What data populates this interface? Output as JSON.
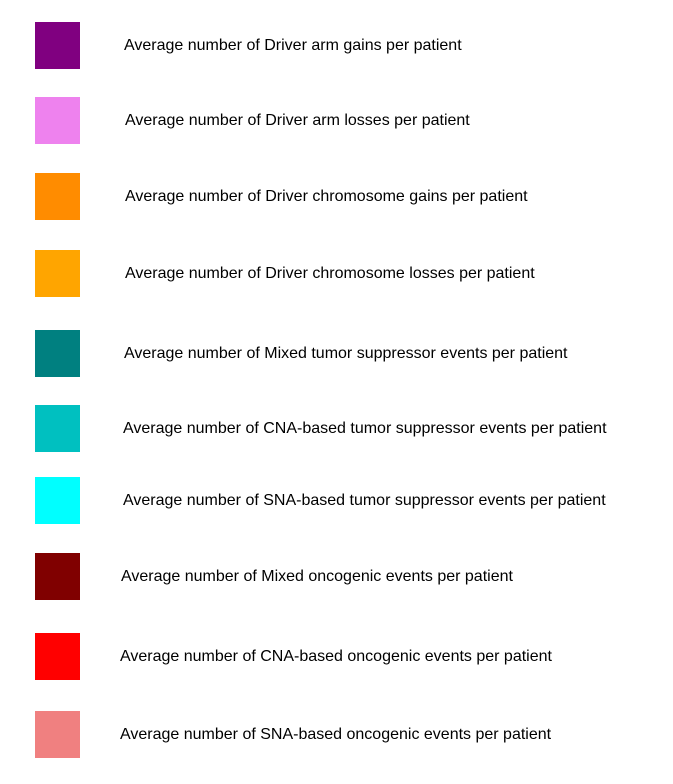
{
  "chart_data": {
    "type": "legend",
    "title": "",
    "entries": [
      {
        "label": "Average number of Driver arm gains per patient",
        "color": "#800080"
      },
      {
        "label": "Average number of Driver arm losses per patient",
        "color": "#EE82EE"
      },
      {
        "label": "Average number of Driver chromosome gains per patient",
        "color": "#FF8C00"
      },
      {
        "label": "Average number of Driver chromosome losses per patient",
        "color": "#FFA500"
      },
      {
        "label": "Average number of Mixed tumor suppressor events per patient",
        "color": "#008080"
      },
      {
        "label": "Average number of CNA-based tumor suppressor events per patient",
        "color": "#00C0C0"
      },
      {
        "label": "Average number of SNA-based tumor suppressor events per patient",
        "color": "#00FFFF"
      },
      {
        "label": "Average number of Mixed oncogenic events per patient",
        "color": "#800000"
      },
      {
        "label": "Average number of CNA-based oncogenic events per patient",
        "color": "#FF0000"
      },
      {
        "label": "Average number of SNA-based oncogenic events per patient",
        "color": "#F08080"
      }
    ]
  }
}
